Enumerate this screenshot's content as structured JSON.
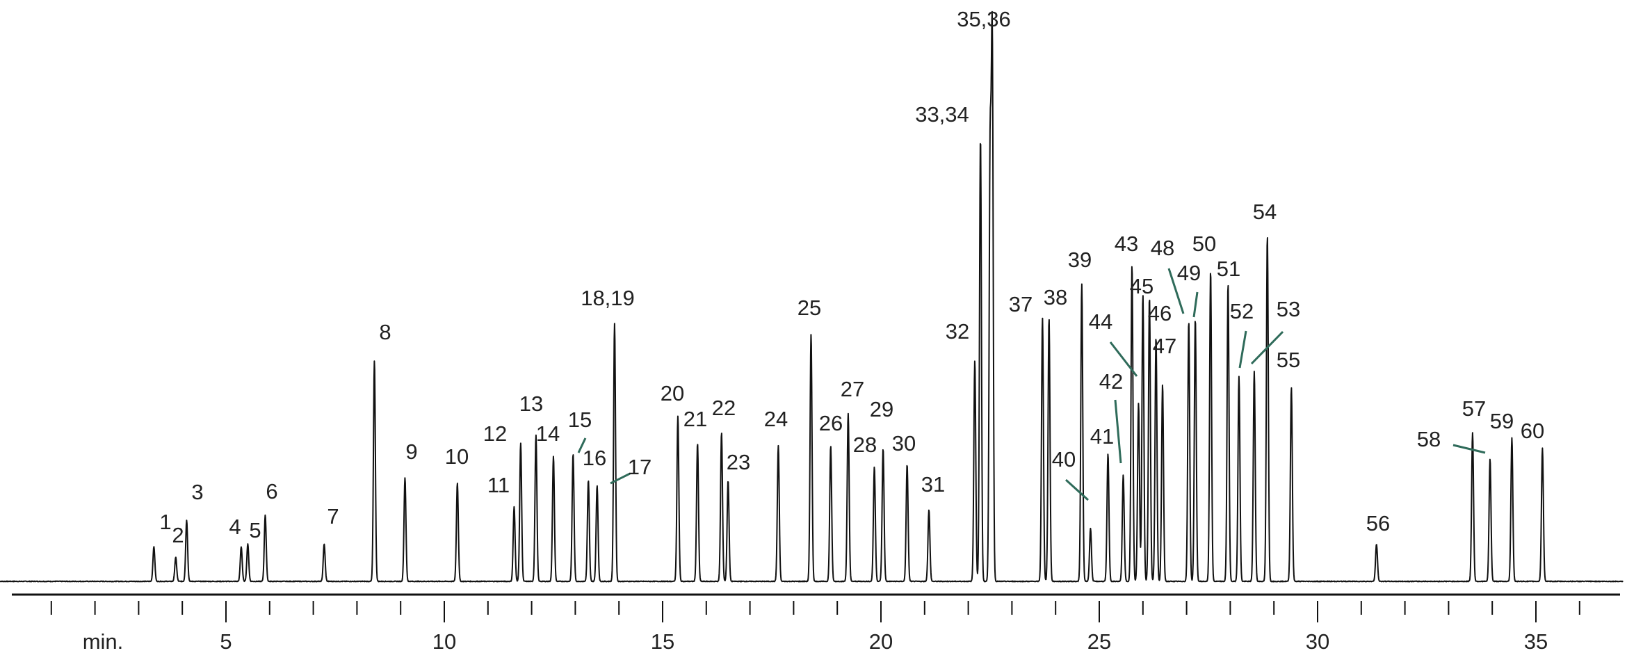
{
  "chart_data": {
    "type": "line",
    "title": "",
    "xlabel": "min.",
    "ylabel": "",
    "xlim": [
      -0.2,
      37.0
    ],
    "ylim": [
      0,
      100
    ],
    "grid": false,
    "legend": "none",
    "x_ticks_labeled": [
      5,
      10,
      15,
      20,
      25,
      30,
      35
    ],
    "x_ticks_minor": [
      -0.2,
      1,
      2,
      3,
      4,
      6,
      7,
      8,
      9,
      11,
      12,
      13,
      14,
      16,
      17,
      18,
      19,
      21,
      22,
      23,
      24,
      26,
      27,
      28,
      29,
      31,
      32,
      33,
      34,
      36
    ],
    "x_tick_labels": [
      "5",
      "10",
      "15",
      "20",
      "25",
      "30",
      "35"
    ],
    "colors": {
      "trace": "#111111",
      "axis": "#111111",
      "leader": "#2f6b5a"
    },
    "series": [
      {
        "peaks": [
          {
            "x": 3.35,
            "h": 6.5
          },
          {
            "x": 3.85,
            "h": 4.5
          },
          {
            "x": 4.1,
            "h": 11.5
          },
          {
            "x": 5.35,
            "h": 6.5
          },
          {
            "x": 5.5,
            "h": 7.0
          },
          {
            "x": 5.9,
            "h": 12.5
          },
          {
            "x": 7.25,
            "h": 7.0
          },
          {
            "x": 8.4,
            "h": 41.5
          },
          {
            "x": 9.1,
            "h": 19.5
          },
          {
            "x": 10.3,
            "h": 18.5
          },
          {
            "x": 11.6,
            "h": 14.0
          },
          {
            "x": 11.75,
            "h": 26.0
          },
          {
            "x": 12.1,
            "h": 27.5
          },
          {
            "x": 12.5,
            "h": 23.5
          },
          {
            "x": 12.95,
            "h": 24.0
          },
          {
            "x": 13.3,
            "h": 19.0
          },
          {
            "x": 13.5,
            "h": 18.0
          },
          {
            "x": 13.9,
            "h": 48.5
          },
          {
            "x": 15.35,
            "h": 31.0
          },
          {
            "x": 15.8,
            "h": 26.0
          },
          {
            "x": 16.35,
            "h": 28.0
          },
          {
            "x": 16.5,
            "h": 19.0
          },
          {
            "x": 17.65,
            "h": 25.5
          },
          {
            "x": 18.4,
            "h": 46.5
          },
          {
            "x": 18.85,
            "h": 25.5
          },
          {
            "x": 19.25,
            "h": 31.5
          },
          {
            "x": 19.85,
            "h": 21.5
          },
          {
            "x": 20.05,
            "h": 25.0
          },
          {
            "x": 20.6,
            "h": 22.0
          },
          {
            "x": 21.1,
            "h": 13.5
          },
          {
            "x": 22.15,
            "h": 41.5
          },
          {
            "x": 22.28,
            "h": 83.5
          },
          {
            "x": 22.55,
            "h": 100.0
          },
          {
            "x": 22.5,
            "h": 78.0
          },
          {
            "x": 23.7,
            "h": 49.5
          },
          {
            "x": 23.85,
            "h": 49.5
          },
          {
            "x": 24.6,
            "h": 56.0
          },
          {
            "x": 24.8,
            "h": 10.0
          },
          {
            "x": 25.2,
            "h": 24.0
          },
          {
            "x": 25.55,
            "h": 20.0
          },
          {
            "x": 25.75,
            "h": 59.5
          },
          {
            "x": 25.9,
            "h": 33.5
          },
          {
            "x": 26.0,
            "h": 54.0
          },
          {
            "x": 26.15,
            "h": 53.5
          },
          {
            "x": 26.3,
            "h": 46.0
          },
          {
            "x": 26.45,
            "h": 37.0
          },
          {
            "x": 27.05,
            "h": 49.0
          },
          {
            "x": 27.2,
            "h": 49.5
          },
          {
            "x": 27.55,
            "h": 58.5
          },
          {
            "x": 27.95,
            "h": 56.0
          },
          {
            "x": 28.2,
            "h": 38.5
          },
          {
            "x": 28.55,
            "h": 39.5
          },
          {
            "x": 28.85,
            "h": 65.0
          },
          {
            "x": 29.4,
            "h": 36.5
          },
          {
            "x": 31.35,
            "h": 7.0
          },
          {
            "x": 33.55,
            "h": 28.0
          },
          {
            "x": 33.95,
            "h": 23.0
          },
          {
            "x": 34.45,
            "h": 27.0
          },
          {
            "x": 35.15,
            "h": 25.0
          }
        ]
      }
    ],
    "annotations": [
      {
        "text": "1",
        "x": 3.35
      },
      {
        "text": "2",
        "x": 3.85
      },
      {
        "text": "3",
        "x": 4.1
      },
      {
        "text": "4",
        "x": 5.35
      },
      {
        "text": "5",
        "x": 5.5
      },
      {
        "text": "6",
        "x": 5.9
      },
      {
        "text": "7",
        "x": 7.25
      },
      {
        "text": "8",
        "x": 8.4
      },
      {
        "text": "9",
        "x": 9.1
      },
      {
        "text": "10",
        "x": 10.3
      },
      {
        "text": "11",
        "x": 11.6
      },
      {
        "text": "12",
        "x": 11.75
      },
      {
        "text": "13",
        "x": 12.1
      },
      {
        "text": "14",
        "x": 12.5
      },
      {
        "text": "15",
        "x": 12.95
      },
      {
        "text": "16",
        "x": 13.3
      },
      {
        "text": "17",
        "x": 13.5
      },
      {
        "text": "18,19",
        "x": 13.9
      },
      {
        "text": "20",
        "x": 15.35
      },
      {
        "text": "21",
        "x": 15.8
      },
      {
        "text": "22",
        "x": 16.35
      },
      {
        "text": "23",
        "x": 16.5
      },
      {
        "text": "24",
        "x": 17.65
      },
      {
        "text": "25",
        "x": 18.4
      },
      {
        "text": "26",
        "x": 18.85
      },
      {
        "text": "27",
        "x": 19.25
      },
      {
        "text": "28",
        "x": 19.85
      },
      {
        "text": "29",
        "x": 20.05
      },
      {
        "text": "30",
        "x": 20.6
      },
      {
        "text": "31",
        "x": 21.1
      },
      {
        "text": "32",
        "x": 22.15
      },
      {
        "text": "33,34",
        "x": 22.28
      },
      {
        "text": "35,36",
        "x": 22.55
      },
      {
        "text": "37",
        "x": 23.7
      },
      {
        "text": "38",
        "x": 23.85
      },
      {
        "text": "39",
        "x": 24.6
      },
      {
        "text": "40",
        "x": 24.8
      },
      {
        "text": "41",
        "x": 25.2
      },
      {
        "text": "42",
        "x": 25.55
      },
      {
        "text": "43",
        "x": 25.75
      },
      {
        "text": "44",
        "x": 25.9
      },
      {
        "text": "45",
        "x": 26.0
      },
      {
        "text": "46",
        "x": 26.3
      },
      {
        "text": "47",
        "x": 26.45
      },
      {
        "text": "48",
        "x": 27.05
      },
      {
        "text": "49",
        "x": 27.2
      },
      {
        "text": "50",
        "x": 27.55
      },
      {
        "text": "51",
        "x": 27.95
      },
      {
        "text": "52",
        "x": 28.2
      },
      {
        "text": "53",
        "x": 28.55
      },
      {
        "text": "54",
        "x": 28.85
      },
      {
        "text": "55",
        "x": 29.4
      },
      {
        "text": "56",
        "x": 31.35
      },
      {
        "text": "57",
        "x": 33.55
      },
      {
        "text": "58",
        "x": 33.95
      },
      {
        "text": "59",
        "x": 34.45
      },
      {
        "text": "60",
        "x": 35.15
      }
    ]
  }
}
